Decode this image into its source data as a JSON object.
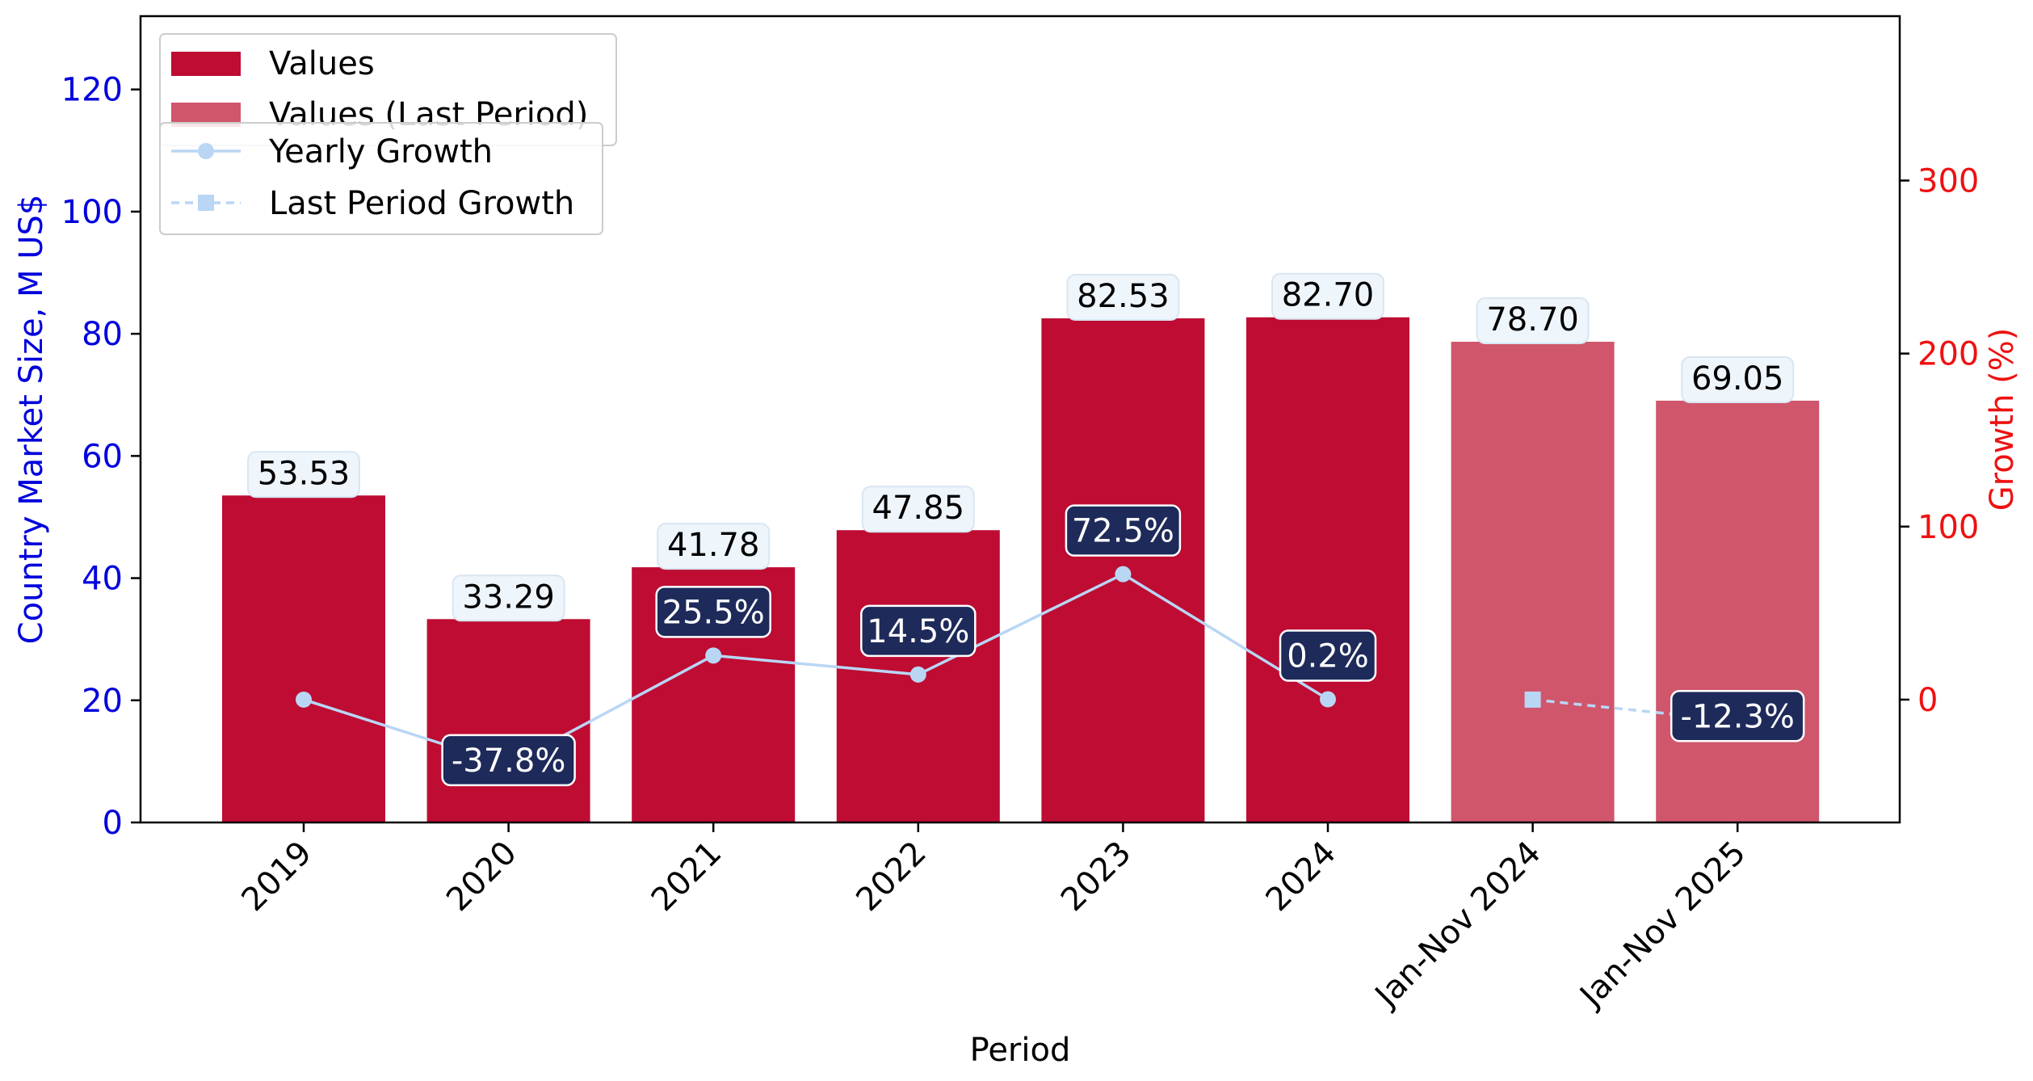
{
  "chart_data": {
    "type": "bar",
    "xlabel": "Period",
    "ylabel": "Country Market Size, M US$",
    "y2label": "Growth (%)",
    "ylim": [
      0,
      132
    ],
    "y2lim": [
      -71,
      395
    ],
    "yticks": [
      0,
      20,
      40,
      60,
      80,
      100,
      120
    ],
    "y2ticks": [
      0,
      100,
      200,
      300
    ],
    "categories": [
      "2019",
      "2020",
      "2021",
      "2022",
      "2023",
      "2024",
      "Jan-Nov 2024",
      "Jan-Nov 2025"
    ],
    "series": [
      {
        "name": "Values",
        "kind": "bar",
        "color": "#be0c33",
        "values": [
          53.53,
          33.29,
          41.78,
          47.85,
          82.53,
          82.7,
          null,
          null
        ],
        "labels": [
          "53.53",
          "33.29",
          "41.78",
          "47.85",
          "82.53",
          "82.70",
          "",
          ""
        ]
      },
      {
        "name": "Values (Last Period)",
        "kind": "bar",
        "color": "#d0566c",
        "values": [
          null,
          null,
          null,
          null,
          null,
          null,
          78.7,
          69.05
        ],
        "labels": [
          "",
          "",
          "",
          "",
          "",
          "",
          "78.70",
          "69.05"
        ]
      },
      {
        "name": "Yearly Growth",
        "kind": "line",
        "axis": "right",
        "color": "#b9d6f5",
        "marker": "circle",
        "values": [
          0,
          -37.8,
          25.5,
          14.5,
          72.5,
          0.2,
          null,
          null
        ],
        "labels": [
          "",
          "-37.8%",
          "25.5%",
          "14.5%",
          "72.5%",
          "0.2%",
          "",
          ""
        ]
      },
      {
        "name": "Last Period Growth",
        "kind": "line",
        "axis": "right",
        "color": "#b9d6f5",
        "marker": "square",
        "dashed": true,
        "values": [
          null,
          null,
          null,
          null,
          null,
          null,
          0,
          -12.3
        ],
        "labels": [
          "",
          "",
          "",
          "",
          "",
          "",
          "",
          "-12.3%"
        ]
      }
    ],
    "legend_placement": "top-left",
    "grid": false
  },
  "colors": {
    "left_axis": "#0000dd",
    "right_axis": "#ee1111",
    "growth_label_bg": "#1e2a5a",
    "value_label_bg": "#eef5fb"
  }
}
